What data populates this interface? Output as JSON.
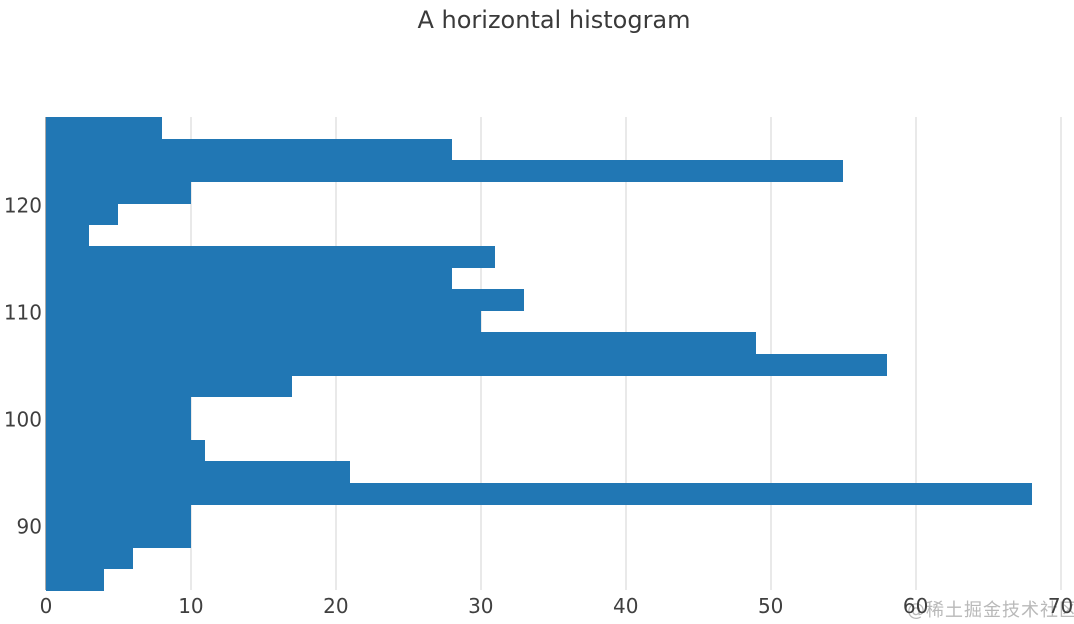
{
  "title": "A horizontal histogram",
  "watermark": "@稀土掘金技术社区",
  "colors": {
    "bar": "#2177b4",
    "grid": "#e9e9e9",
    "spine": "#aaaaaa",
    "text": "#3f3f3f",
    "title_text": "#3a3a3a",
    "watermark_text": "#b9b9b9",
    "background": "#ffffff"
  },
  "chart_data": {
    "type": "bar",
    "subtype": "horizontal-histogram",
    "orientation": "horizontal",
    "title": "A horizontal histogram",
    "xlabel": "",
    "ylabel": "",
    "x_ticks": [
      0,
      10,
      20,
      30,
      40,
      50,
      60,
      70
    ],
    "y_ticks": [
      90,
      100,
      110,
      120
    ],
    "xlim": [
      0,
      70.1
    ],
    "ylim": [
      84.1,
      128.3
    ],
    "bin_count": 22,
    "bin_width_units": 2.01,
    "counts_top_to_bottom": [
      8,
      28,
      55,
      10,
      5,
      3,
      31,
      28,
      33,
      30,
      49,
      58,
      17,
      10,
      10,
      11,
      21,
      68,
      10,
      10,
      6,
      4
    ],
    "grid": "vertical-gridlines-only",
    "legend": null
  }
}
